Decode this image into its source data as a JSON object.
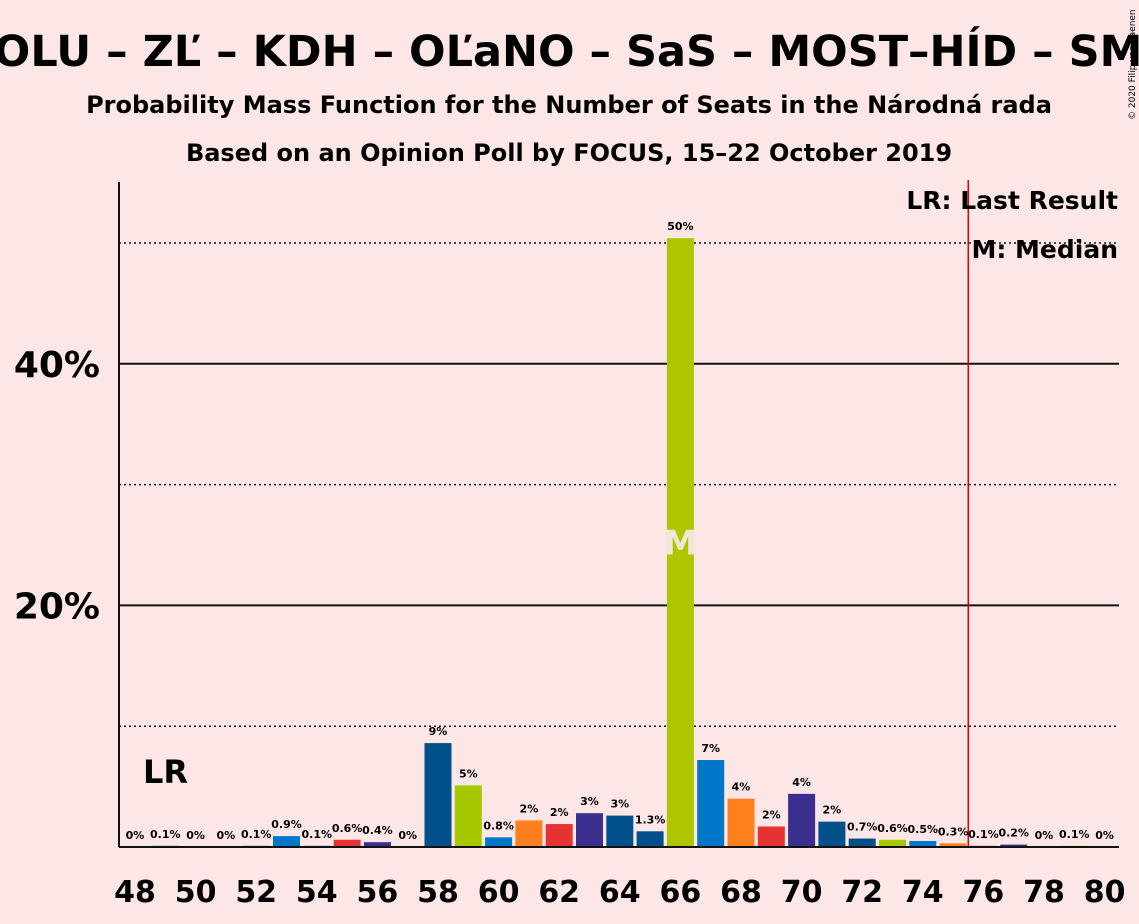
{
  "chart_data": {
    "type": "bar",
    "title": "POLU – ZĽ – KDH – OĽaNO – SaS – MOST–HÍD – SMK",
    "subtitle": "Probability Mass Function for the Number of Seats in the Národná rada",
    "subtitle2": "Based on an Opinion Poll by FOCUS, 15–22 October 2019",
    "copyright": "© 2020 Filip van Laenen",
    "x": [
      48,
      49,
      50,
      51,
      52,
      53,
      54,
      55,
      56,
      57,
      58,
      59,
      60,
      61,
      62,
      63,
      64,
      65,
      66,
      67,
      68,
      69,
      70,
      71,
      72,
      73,
      74,
      75,
      76,
      77,
      78,
      79,
      80
    ],
    "values": [
      0,
      0.1,
      0,
      0,
      0.1,
      0.9,
      0.1,
      0.6,
      0.4,
      0,
      8.6,
      5.1,
      0.8,
      2.2,
      1.9,
      2.8,
      2.6,
      1.3,
      50.4,
      7.2,
      4.0,
      1.7,
      4.4,
      2.1,
      0.7,
      0.6,
      0.5,
      0.3,
      0.1,
      0.2,
      0,
      0.1,
      0
    ],
    "labels": [
      "0%",
      "0.1%",
      "0%",
      "0%",
      "0.1%",
      "0.9%",
      "0.1%",
      "0.6%",
      "0.4%",
      "0%",
      "9%",
      "5%",
      "0.8%",
      "2%",
      "2%",
      "3%",
      "3%",
      "1.3%",
      "50%",
      "7%",
      "4%",
      "2%",
      "4%",
      "2%",
      "0.7%",
      "0.6%",
      "0.5%",
      "0.3%",
      "0.1%",
      "0.2%",
      "0%",
      "0.1%",
      "0%"
    ],
    "colors": [
      "#0077c8",
      "#0077c8",
      "#0077c8",
      "#0077c8",
      "#0077c8",
      "#0077c8",
      "#0077c8",
      "#e63232",
      "#3a2f8f",
      "#0077c8",
      "#00508c",
      "#a6c800",
      "#0077c8",
      "#ff7f1e",
      "#e63232",
      "#3a2f8f",
      "#00508c",
      "#00508c",
      "#adc600",
      "#0077c8",
      "#ff7f1e",
      "#e63232",
      "#3a2f8f",
      "#00508c",
      "#00508c",
      "#a6c800",
      "#0077c8",
      "#ff7f1e",
      "#e63232",
      "#3a2f8f",
      "#00508c",
      "#a6c800",
      "#0077c8"
    ],
    "x_ticks": [
      "48",
      "50",
      "52",
      "54",
      "56",
      "58",
      "60",
      "62",
      "64",
      "66",
      "68",
      "70",
      "72",
      "74",
      "76",
      "78",
      "80"
    ],
    "y_ticks": [
      "20%",
      "40%"
    ],
    "ylim": [
      0,
      55
    ],
    "solid_gridlines": [
      20,
      40
    ],
    "dotted_gridlines": [
      10,
      30,
      50
    ],
    "last_result_seat": 75.5,
    "last_result_label": "LR",
    "median_seat": 66,
    "median_label": "M",
    "legend": [
      "LR: Last Result",
      "M: Median"
    ],
    "legend_position": "top-right",
    "colors_meta": {
      "background": "#fde6e6",
      "lr_line": "#e00000",
      "axis": "#111111"
    }
  }
}
